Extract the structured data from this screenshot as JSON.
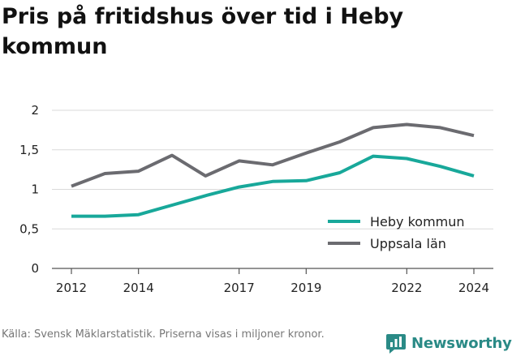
{
  "header": {
    "title": "Pris på fritidshus över tid i Heby kommun"
  },
  "footer": {
    "source": "Källa: Svensk Mäklarstatistik. Priserna visas i miljoner kronor.",
    "brand": "Newsworthy"
  },
  "colors": {
    "heby": "#18a89a",
    "uppsala": "#6b6b70",
    "grid": "#d9d9d9",
    "axis": "#555555",
    "brand": "#2a8a86"
  },
  "chart_data": {
    "type": "line",
    "title": "Pris på fritidshus över tid i Heby kommun",
    "xlabel": "",
    "ylabel": "",
    "xlim": [
      2012,
      2024
    ],
    "ylim": [
      0,
      2
    ],
    "x_ticks": [
      2012,
      2014,
      2017,
      2019,
      2022,
      2024
    ],
    "y_ticks": [
      {
        "value": 0,
        "label": "0"
      },
      {
        "value": 0.5,
        "label": "0,5"
      },
      {
        "value": 1,
        "label": "1"
      },
      {
        "value": 1.5,
        "label": "1,5"
      },
      {
        "value": 2,
        "label": "2"
      }
    ],
    "grid": true,
    "legend_position": "bottom-right",
    "x": [
      2012,
      2013,
      2014,
      2015,
      2016,
      2017,
      2018,
      2019,
      2020,
      2021,
      2022,
      2023,
      2024
    ],
    "series": [
      {
        "name": "Heby kommun",
        "color": "#18a89a",
        "values": [
          0.66,
          0.66,
          0.68,
          0.8,
          0.92,
          1.03,
          1.1,
          1.11,
          1.21,
          1.42,
          1.39,
          1.29,
          1.17
        ]
      },
      {
        "name": "Uppsala län",
        "color": "#6b6b70",
        "values": [
          1.04,
          1.2,
          1.23,
          1.43,
          1.17,
          1.36,
          1.31,
          1.46,
          1.6,
          1.78,
          1.82,
          1.78,
          1.68
        ]
      }
    ]
  }
}
